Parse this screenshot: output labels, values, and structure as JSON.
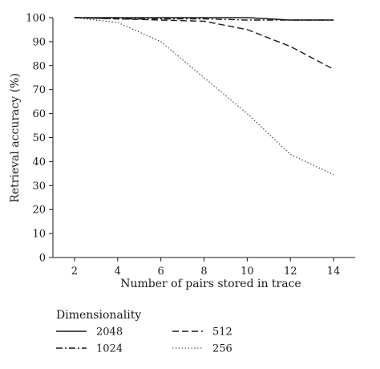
{
  "chart_data": {
    "type": "line",
    "title": "",
    "xlabel": "Number of pairs stored in trace",
    "ylabel": "Retrieval accuracy (%)",
    "x": [
      2,
      4,
      6,
      8,
      10,
      12,
      14
    ],
    "xlim": [
      1,
      15
    ],
    "ylim": [
      0,
      100
    ],
    "xticks": [
      2,
      4,
      6,
      8,
      10,
      12,
      14
    ],
    "yticks": [
      0,
      10,
      20,
      30,
      40,
      50,
      60,
      70,
      80,
      90,
      100
    ],
    "grid": false,
    "legend": {
      "title": "Dimensionality",
      "placement": "bottom"
    },
    "series": [
      {
        "name": "2048",
        "style": "solid",
        "values": [
          100,
          100,
          100,
          100,
          100,
          99,
          99
        ]
      },
      {
        "name": "1024",
        "style": "dashdot",
        "values": [
          100,
          99.5,
          99.5,
          99.5,
          99,
          99,
          99
        ]
      },
      {
        "name": "512",
        "style": "dashed",
        "values": [
          100,
          99.5,
          99,
          98.5,
          95,
          88,
          78.5
        ]
      },
      {
        "name": "256",
        "style": "dotted",
        "values": [
          100,
          98,
          90,
          75,
          60,
          43,
          34.5
        ]
      }
    ]
  }
}
